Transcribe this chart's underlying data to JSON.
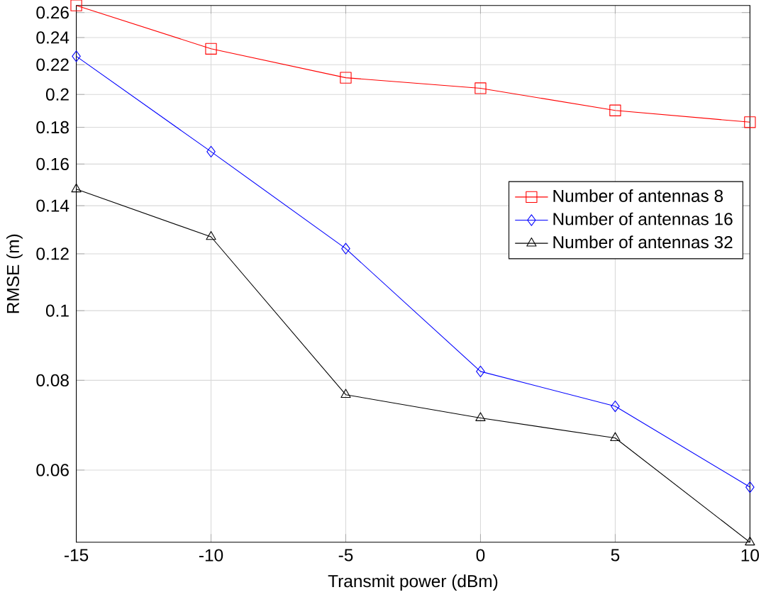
{
  "chart_data": {
    "type": "line",
    "xlabel": "Transmit power (dBm)",
    "ylabel": "RMSE (m)",
    "x": [
      -15,
      -10,
      -5,
      0,
      5,
      10
    ],
    "series": [
      {
        "name": "Number of antennas 8",
        "color": "#ff0000",
        "marker": "square",
        "values": [
          0.266,
          0.2315,
          0.211,
          0.204,
          0.19,
          0.183
        ]
      },
      {
        "name": "Number of antennas 16",
        "color": "#0000ff",
        "marker": "diamond",
        "values": [
          0.226,
          0.1665,
          0.122,
          0.0823,
          0.0736,
          0.0568
        ]
      },
      {
        "name": "Number of antennas 32",
        "color": "#000000",
        "marker": "triangle",
        "values": [
          0.1476,
          0.1267,
          0.0764,
          0.0709,
          0.0665,
          0.0476
        ]
      }
    ],
    "xlim": [
      -15,
      10
    ],
    "xticks": [
      -15,
      -10,
      -5,
      0,
      5,
      10
    ],
    "ylim": [
      0.0476,
      0.266
    ],
    "yticks": [
      0.06,
      0.08,
      0.1,
      0.12,
      0.14,
      0.16,
      0.18,
      0.2,
      0.22,
      0.24,
      0.26
    ],
    "log": "y",
    "grid": true,
    "legend": "right",
    "line_style": "solid"
  }
}
